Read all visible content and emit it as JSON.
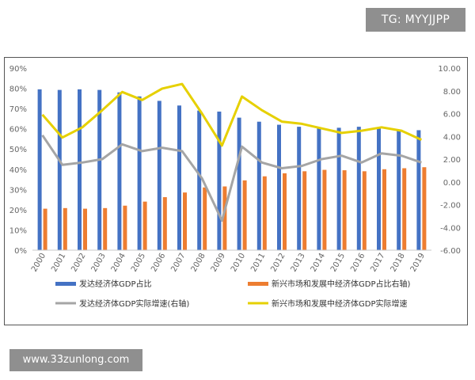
{
  "watermarks": {
    "top_right": "TG: MYYJJPP",
    "bottom_left": "www.33zunlong.com"
  },
  "colors": {
    "developed_share": "#4472c4",
    "emerging_share": "#ed7d31",
    "developed_growth": "#a5a5a5",
    "emerging_growth": "#e6d000"
  },
  "chart_data": {
    "type": "bar",
    "categories": [
      "2000",
      "2001",
      "2002",
      "2003",
      "2004",
      "2005",
      "2006",
      "2007",
      "2008",
      "2009",
      "2010",
      "2011",
      "2012",
      "2013",
      "2014",
      "2015",
      "2016",
      "2017",
      "2018",
      "2019"
    ],
    "left_axis": {
      "ylim": [
        0,
        90
      ],
      "ticks": [
        "0%",
        "10%",
        "20%",
        "30%",
        "40%",
        "50%",
        "60%",
        "70%",
        "80%",
        "90%"
      ]
    },
    "right_axis": {
      "ylim": [
        -6,
        10
      ],
      "ticks": [
        "-6.00",
        "-4.00",
        "-2.00",
        "0.00",
        "2.00",
        "4.00",
        "6.00",
        "8.00",
        "10.00"
      ]
    },
    "series": [
      {
        "name": "发达经济体GDP占比",
        "type": "bar",
        "axis": "left",
        "values": [
          79.5,
          79.2,
          79.5,
          79.2,
          78.0,
          76.0,
          73.8,
          71.5,
          69.0,
          68.5,
          65.5,
          63.5,
          62.0,
          61.0,
          60.3,
          60.5,
          61.0,
          60.5,
          59.0,
          59.3
        ]
      },
      {
        "name": "新兴市场和发展中经济体GDP占比右轴)",
        "type": "bar",
        "axis": "left",
        "values": [
          20.5,
          20.8,
          20.5,
          20.8,
          22.0,
          24.0,
          26.2,
          28.5,
          31.0,
          31.5,
          34.5,
          36.5,
          38.0,
          39.0,
          39.7,
          39.5,
          39.0,
          40.0,
          40.5,
          41.0
        ]
      },
      {
        "name": "发达经济体GDP实际增速(右轴)",
        "type": "line",
        "axis": "right",
        "values": [
          4.1,
          1.5,
          1.7,
          2.0,
          3.3,
          2.7,
          3.0,
          2.7,
          0.3,
          -3.4,
          3.1,
          1.7,
          1.2,
          1.4,
          2.0,
          2.3,
          1.7,
          2.5,
          2.3,
          1.7
        ]
      },
      {
        "name": "新兴市场和发展中经济体GDP实际增速",
        "type": "line",
        "axis": "right",
        "values": [
          5.9,
          3.9,
          4.8,
          6.3,
          7.9,
          7.2,
          8.2,
          8.6,
          6.0,
          3.2,
          7.5,
          6.3,
          5.3,
          5.1,
          4.7,
          4.3,
          4.5,
          4.8,
          4.5,
          3.7
        ]
      }
    ],
    "legend_position": "bottom",
    "grid": false
  }
}
